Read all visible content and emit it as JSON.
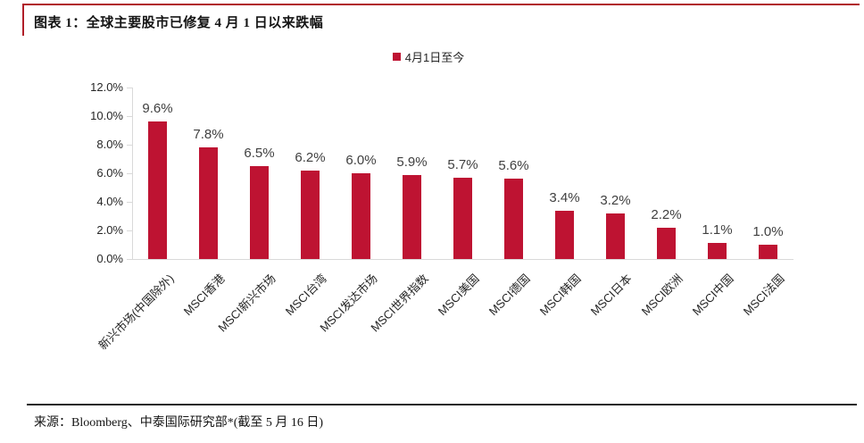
{
  "page": {
    "title": "图表 1：全球主要股市已修复 4 月 1 日以来跌幅",
    "source": "来源：Bloomberg、中泰国际研究部*(截至 5 月 16 日)"
  },
  "colors": {
    "bar": "#BE1332",
    "accent_bracket": "#B01E28",
    "footer_line": "#262626",
    "axis_line": "#d9d9d9",
    "data_label": "#404040",
    "tick_label": "#262626"
  },
  "chart_data": {
    "type": "bar",
    "title": "",
    "legend": [
      "4月1日至今"
    ],
    "legend_position": "top-center",
    "categories": [
      "新兴市场(中国除外)",
      "MSCI香港",
      "MSCI新兴市场",
      "MSCI台湾",
      "MSCI发达市场",
      "MSCI世界指数",
      "MSCI美国",
      "MSCI德国",
      "MSCI韩国",
      "MSCI日本",
      "MSCI欧洲",
      "MSCI中国",
      "MSCI法国"
    ],
    "series": [
      {
        "name": "4月1日至今",
        "values": [
          9.6,
          7.8,
          6.5,
          6.2,
          6.0,
          5.9,
          5.7,
          5.6,
          3.4,
          3.2,
          2.2,
          1.1,
          1.0
        ]
      }
    ],
    "data_labels": [
      "9.6%",
      "7.8%",
      "6.5%",
      "6.2%",
      "6.0%",
      "5.9%",
      "5.7%",
      "5.6%",
      "3.4%",
      "3.2%",
      "2.2%",
      "1.1%",
      "1.0%"
    ],
    "xlabel": "",
    "ylabel": "",
    "ylim": [
      0,
      12
    ],
    "ytick_step": 2,
    "ytick_labels": [
      "0.0%",
      "2.0%",
      "4.0%",
      "6.0%",
      "8.0%",
      "10.0%",
      "12.0%"
    ],
    "grid": false,
    "bar_color": "#BE1332",
    "category_label_rotation_deg": -45
  }
}
